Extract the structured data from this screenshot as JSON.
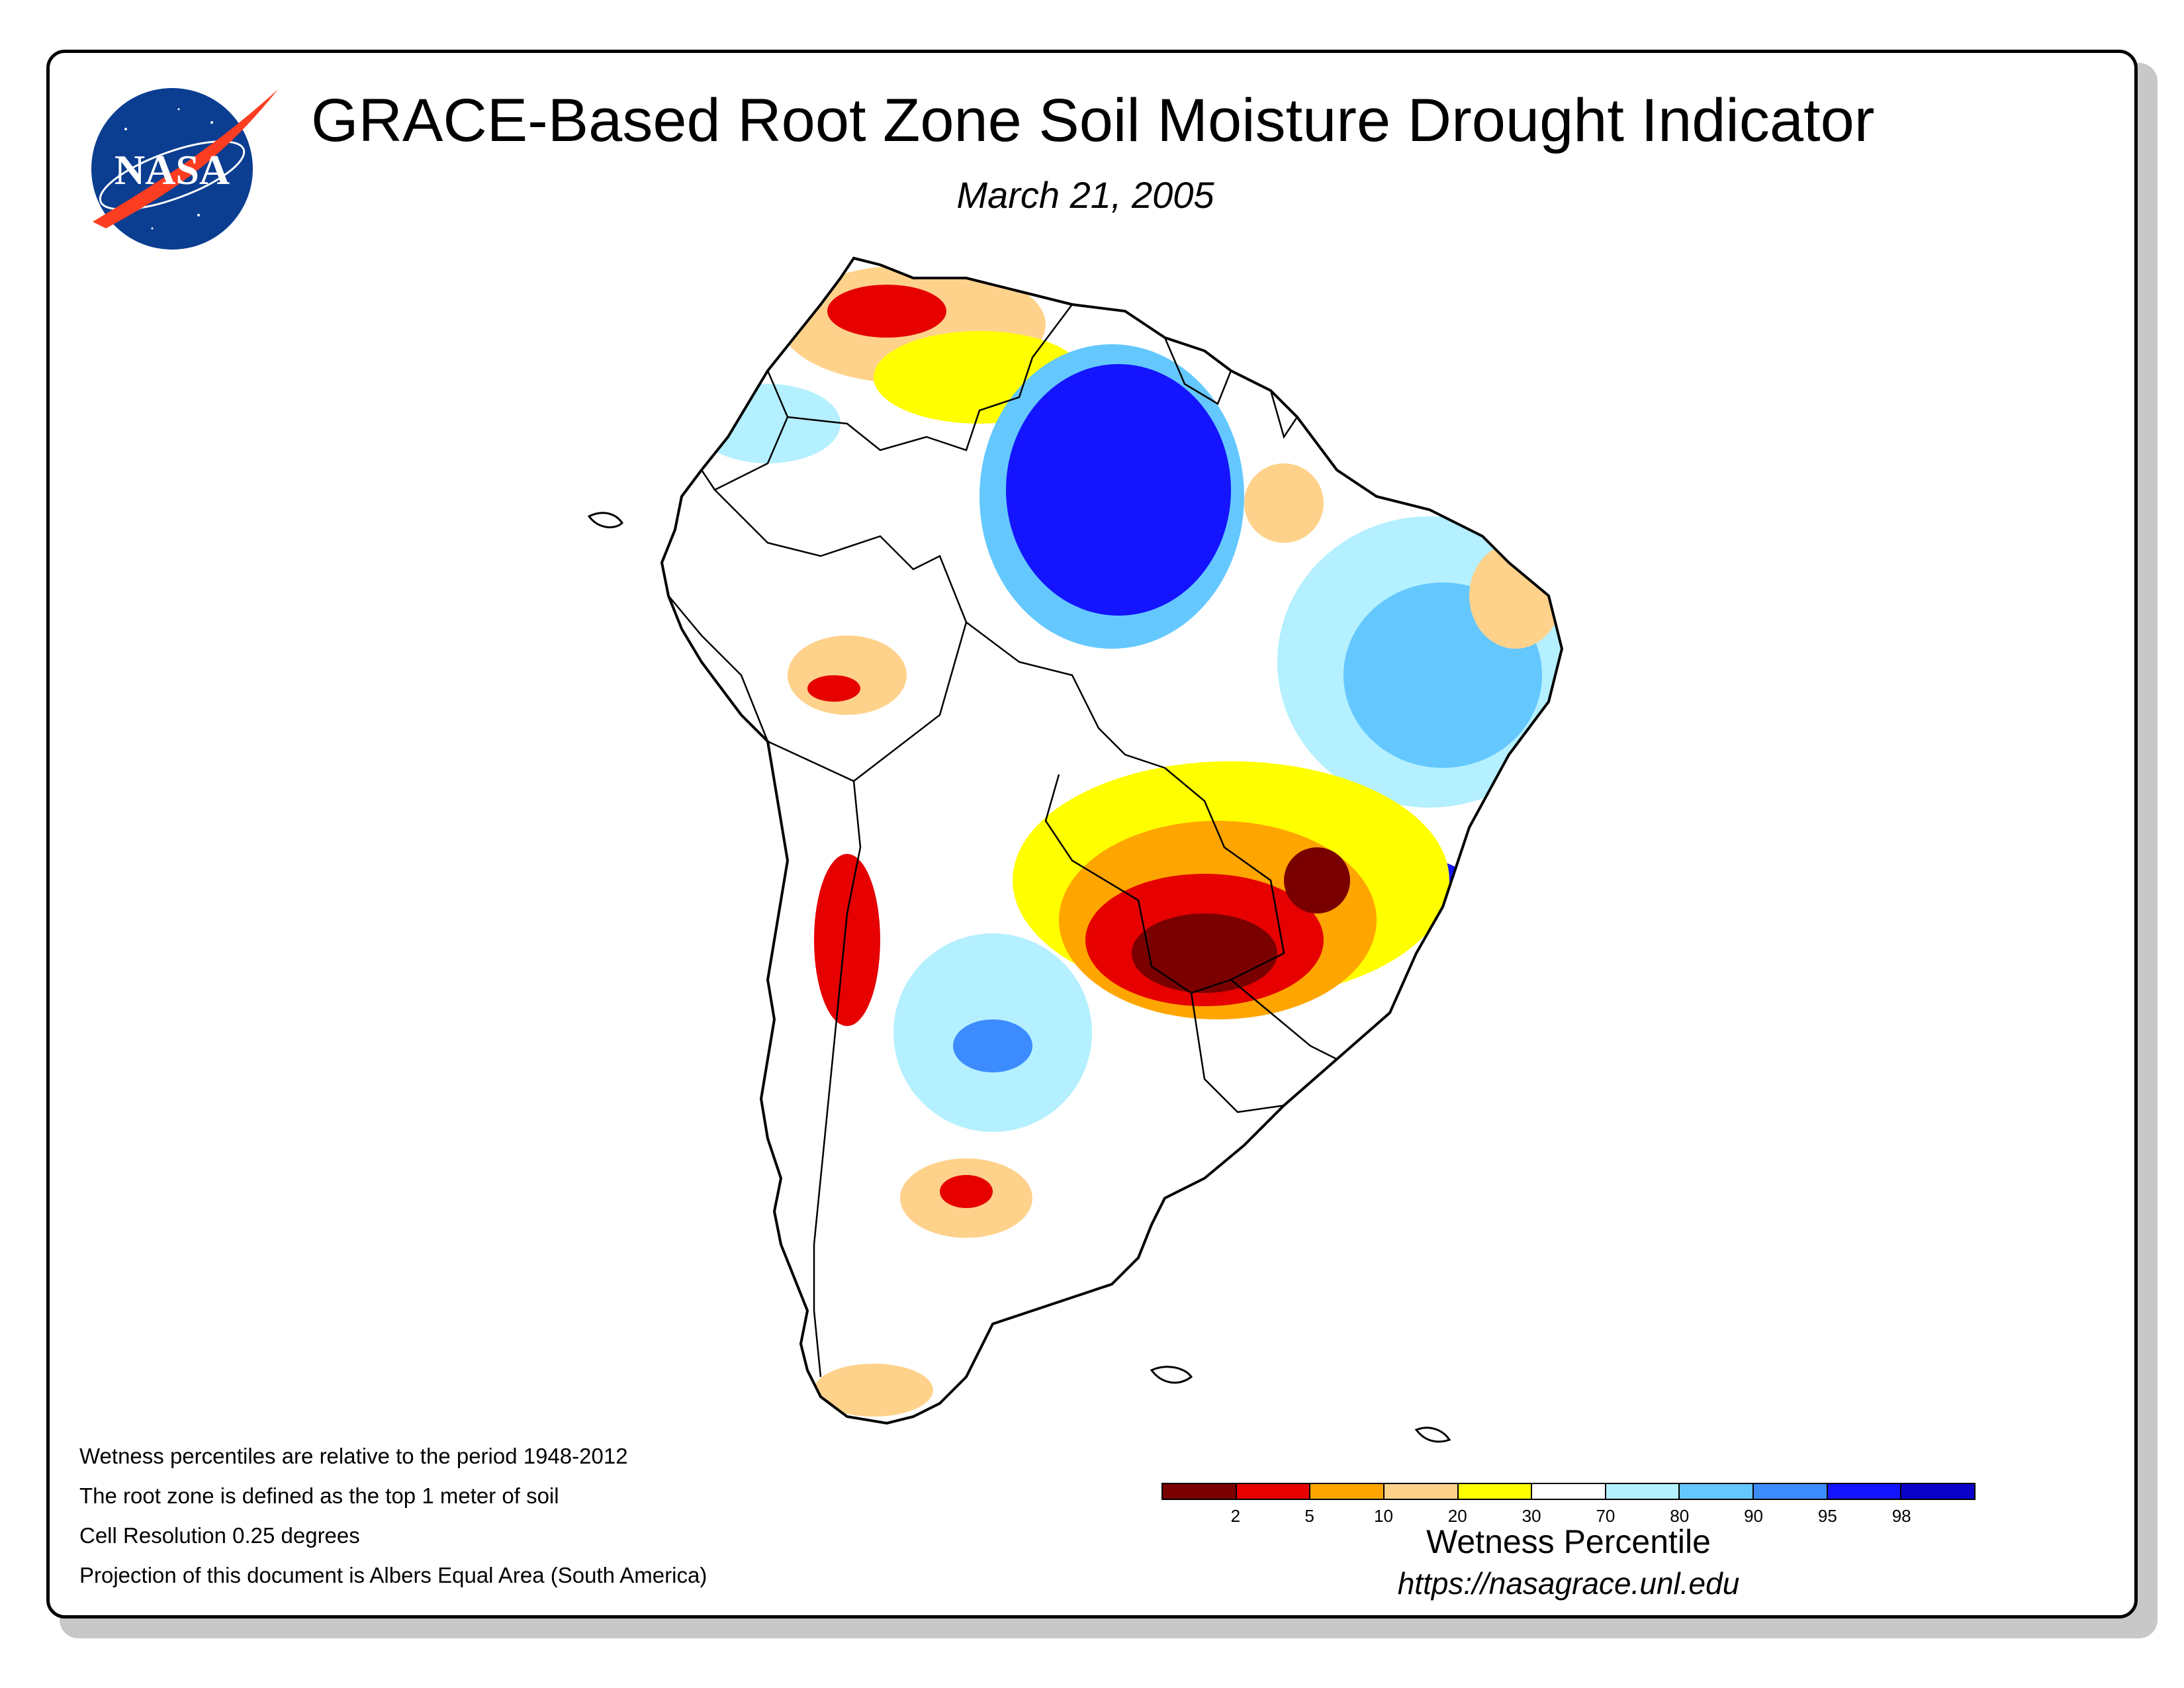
{
  "title": "GRACE-Based Root Zone Soil Moisture Drought Indicator",
  "subtitle": "March 21, 2005",
  "logo": {
    "text": "NASA",
    "icon": "nasa-meatball-logo"
  },
  "notes": [
    "Wetness percentiles are relative to the period 1948-2012",
    "The root zone is defined as the top 1 meter of soil",
    "Cell Resolution 0.25 degrees",
    "Projection of this document is Albers Equal Area (South America)"
  ],
  "legend": {
    "title": "Wetness Percentile",
    "colors": [
      "#7a0000",
      "#e60000",
      "#ffa500",
      "#ffd28c",
      "#ffff00",
      "#ffffff",
      "#b4f0ff",
      "#64c8ff",
      "#3c8cff",
      "#1414ff",
      "#0a00c8"
    ],
    "ticks": [
      "2",
      "5",
      "10",
      "20",
      "30",
      "70",
      "80",
      "90",
      "95",
      "98"
    ]
  },
  "url": "https://nasagrace.unl.edu",
  "colors": {
    "very_dry": "#7a0000",
    "dry": "#ffa500",
    "normal": "#ffffff",
    "wet": "#64c8ff",
    "very_wet": "#1414ff"
  }
}
